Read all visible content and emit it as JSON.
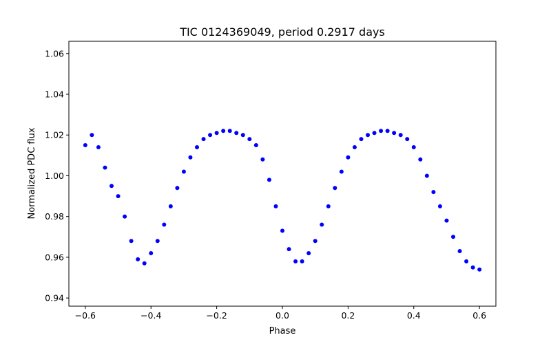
{
  "chart_data": {
    "type": "scatter",
    "title": "TIC 0124369049, period 0.2917 days",
    "xlabel": "Phase",
    "ylabel": "Normalized PDC flux",
    "xlim": [
      -0.65,
      0.65
    ],
    "ylim": [
      0.936,
      1.066
    ],
    "xticks": [
      -0.6,
      -0.4,
      -0.2,
      0.0,
      0.2,
      0.4,
      0.6
    ],
    "xtick_labels": [
      "−0.6",
      "−0.4",
      "−0.2",
      "0.0",
      "0.2",
      "0.4",
      "0.6"
    ],
    "yticks": [
      0.94,
      0.96,
      0.98,
      1.0,
      1.02,
      1.04,
      1.06
    ],
    "ytick_labels": [
      "0.94",
      "0.96",
      "0.98",
      "1.00",
      "1.02",
      "1.04",
      "1.06"
    ],
    "grid": false,
    "legend": "none",
    "marker_color": "#0000ff",
    "series": [
      {
        "name": "",
        "x": [
          -0.6,
          -0.58,
          -0.56,
          -0.54,
          -0.52,
          -0.5,
          -0.48,
          -0.46,
          -0.44,
          -0.42,
          -0.4,
          -0.38,
          -0.36,
          -0.34,
          -0.32,
          -0.3,
          -0.28,
          -0.26,
          -0.24,
          -0.22,
          -0.2,
          -0.18,
          -0.16,
          -0.14,
          -0.12,
          -0.1,
          -0.08,
          -0.06,
          -0.04,
          -0.02,
          0.0,
          0.02,
          0.04,
          0.06,
          0.08,
          0.1,
          0.12,
          0.14,
          0.16,
          0.18,
          0.2,
          0.22,
          0.24,
          0.26,
          0.28,
          0.3,
          0.32,
          0.34,
          0.36,
          0.38,
          0.4,
          0.42,
          0.44,
          0.46,
          0.48,
          0.5,
          0.52,
          0.54,
          0.56,
          0.58,
          0.6
        ],
        "y": [
          1.015,
          1.02,
          1.014,
          1.004,
          0.995,
          0.99,
          0.98,
          0.968,
          0.959,
          0.957,
          0.962,
          0.968,
          0.976,
          0.985,
          0.994,
          1.002,
          1.009,
          1.014,
          1.018,
          1.02,
          1.021,
          1.022,
          1.022,
          1.021,
          1.02,
          1.018,
          1.015,
          1.008,
          0.998,
          0.985,
          0.973,
          0.964,
          0.958,
          0.958,
          0.962,
          0.968,
          0.976,
          0.985,
          0.994,
          1.002,
          1.009,
          1.014,
          1.018,
          1.02,
          1.021,
          1.022,
          1.022,
          1.021,
          1.02,
          1.018,
          1.014,
          1.008,
          1.0,
          0.992,
          0.985,
          0.978,
          0.97,
          0.963,
          0.958,
          0.955,
          0.954
        ]
      }
    ]
  }
}
